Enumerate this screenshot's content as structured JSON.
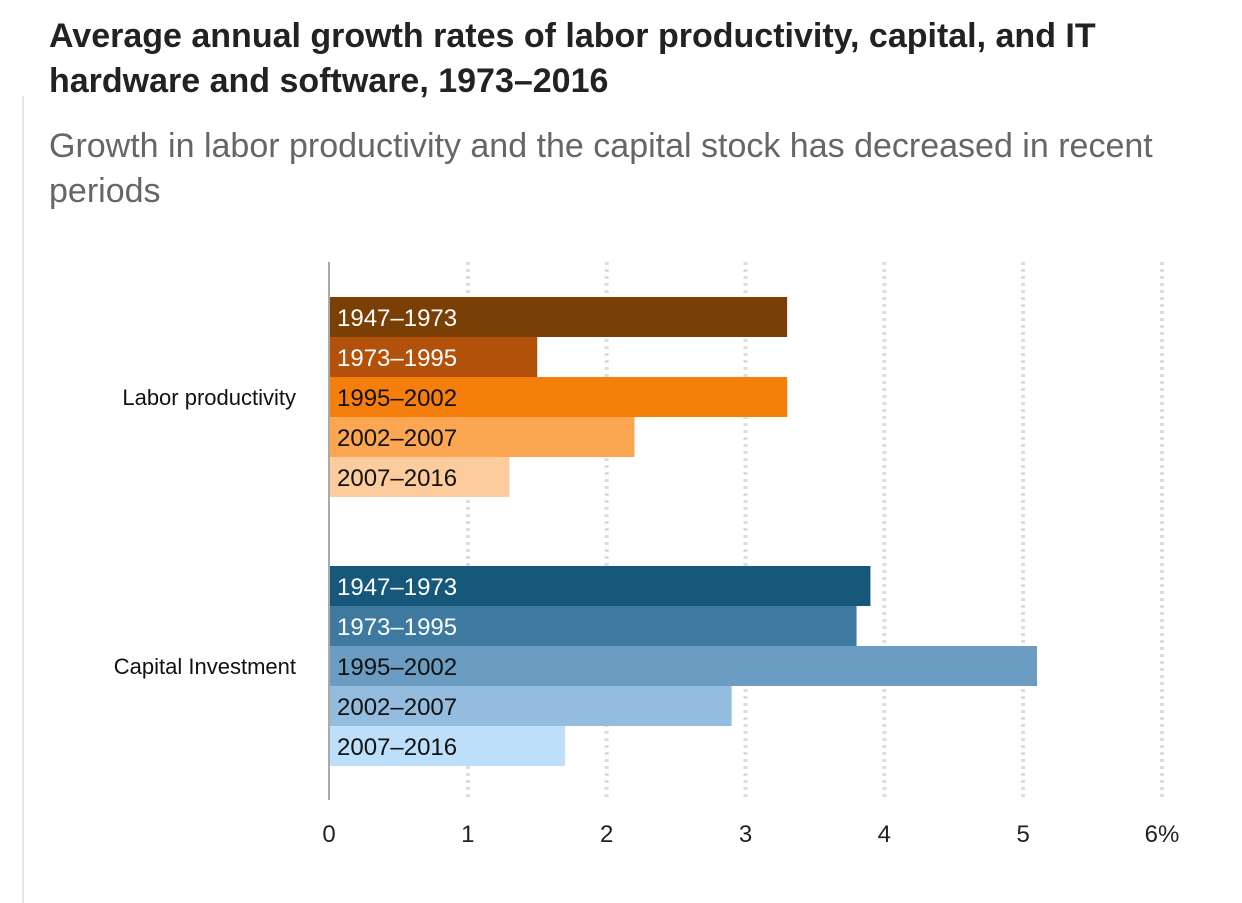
{
  "title": "Average annual growth rates of labor productivity, capital, and IT hardware and software, 1973–2016",
  "subtitle": "Growth in labor productivity and the capital stock has decreased in recent periods",
  "chart_data": {
    "type": "bar",
    "orientation": "horizontal",
    "title": "Average annual growth rates of labor productivity, capital, and IT hardware and software, 1973–2016",
    "subtitle": "Growth in labor productivity and the capital stock has decreased in recent periods",
    "xlabel": "",
    "ylabel": "",
    "xlim": [
      0,
      6
    ],
    "x_ticks": [
      "0",
      "1",
      "2",
      "3",
      "4",
      "5",
      "6%"
    ],
    "grid": "vertical dotted",
    "legend": "none (period labels inside bars)",
    "groups": [
      {
        "name": "Labor productivity",
        "bars": [
          {
            "label": "1947–1973",
            "value": 3.3,
            "color": "#7a3f05",
            "text_color": "#ffffff"
          },
          {
            "label": "1973–1995",
            "value": 1.5,
            "color": "#b2520a",
            "text_color": "#ffffff"
          },
          {
            "label": "1995–2002",
            "value": 3.3,
            "color": "#f67f0c",
            "text_color": "#111111"
          },
          {
            "label": "2002–2007",
            "value": 2.2,
            "color": "#fba650",
            "text_color": "#111111"
          },
          {
            "label": "2007–2016",
            "value": 1.3,
            "color": "#fdcc9c",
            "text_color": "#111111"
          }
        ]
      },
      {
        "name": "Capital Investment",
        "bars": [
          {
            "label": "1947–1973",
            "value": 3.9,
            "color": "#16577a",
            "text_color": "#ffffff"
          },
          {
            "label": "1973–1995",
            "value": 3.8,
            "color": "#3e7aa0",
            "text_color": "#ffffff"
          },
          {
            "label": "1995–2002",
            "value": 5.1,
            "color": "#6a9dc1",
            "text_color": "#111111"
          },
          {
            "label": "2002–2007",
            "value": 2.9,
            "color": "#94bcdf",
            "text_color": "#111111"
          },
          {
            "label": "2007–2016",
            "value": 1.7,
            "color": "#bddff9",
            "text_color": "#111111"
          }
        ]
      }
    ]
  }
}
